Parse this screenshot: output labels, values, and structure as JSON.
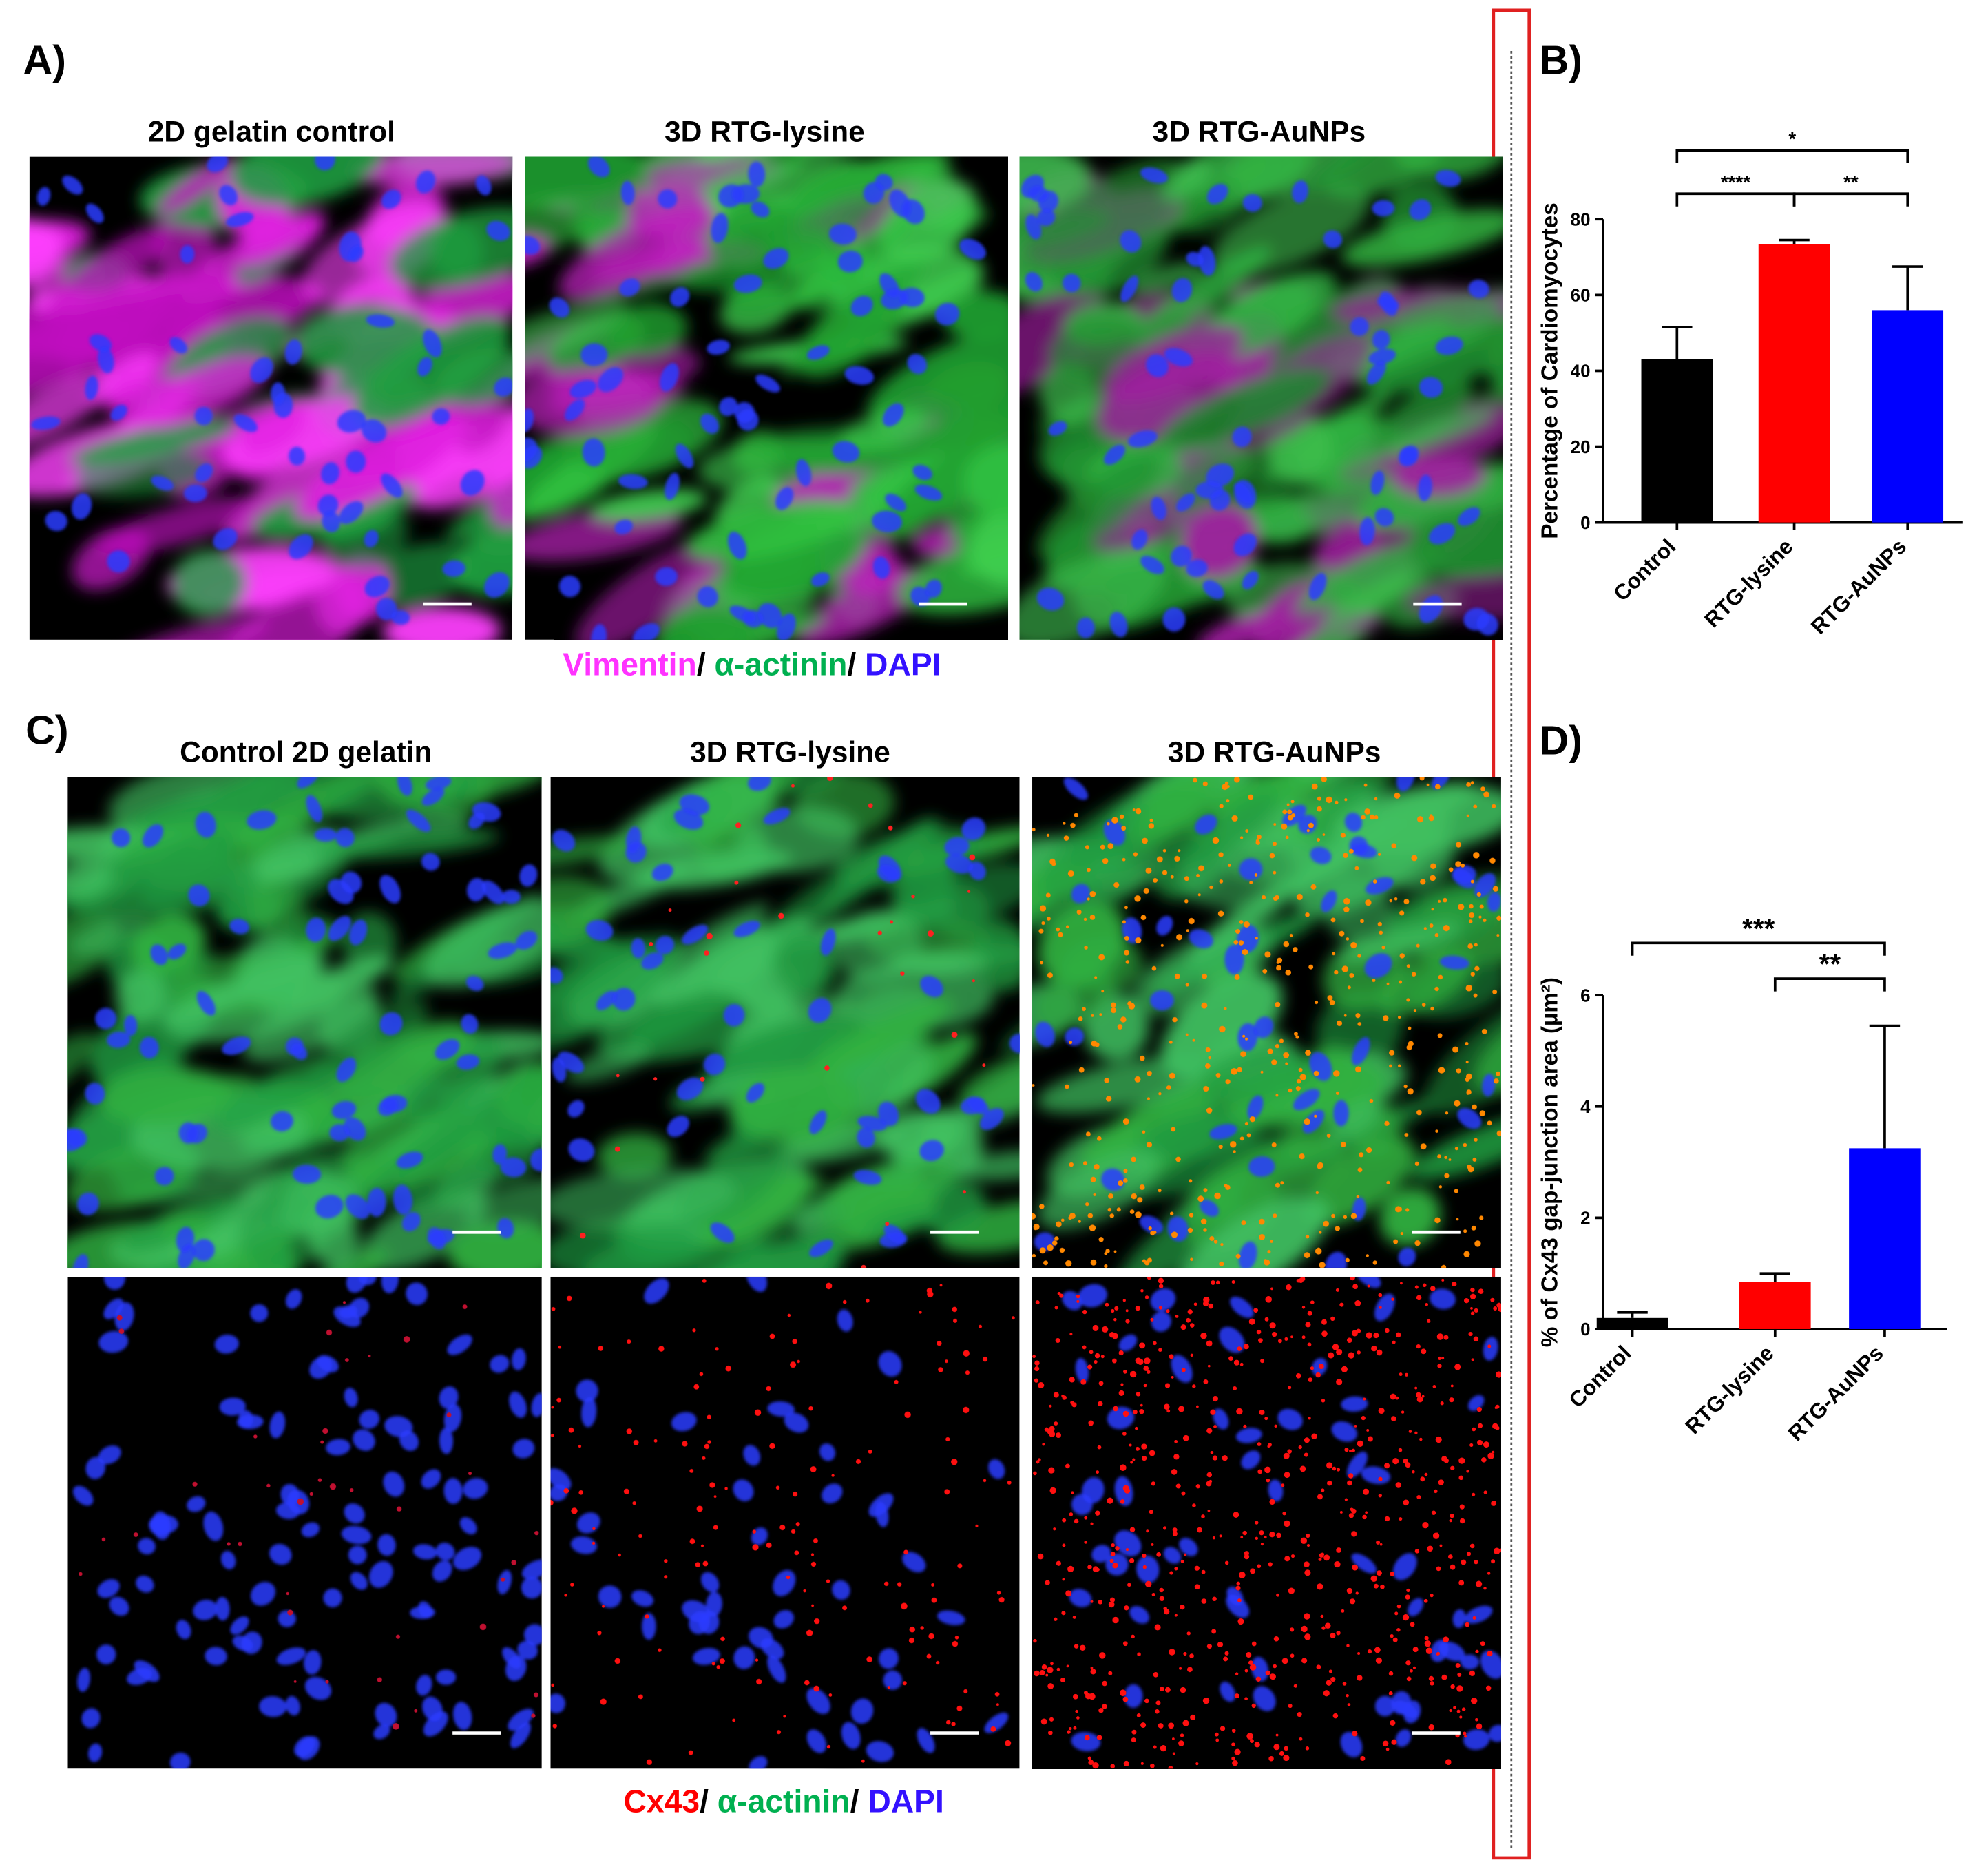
{
  "panel_labels": [
    "A)",
    "B)",
    "C)",
    "D)"
  ],
  "panel_a": {
    "titles": [
      "2D gelatin control",
      "3D RTG-lysine",
      "3D RTG-AuNPs"
    ],
    "legend": {
      "items": [
        "Vimentin",
        "α-actinin",
        "DAPI"
      ],
      "colors": [
        "#ff33ff",
        "#00b050",
        "#3311ff"
      ],
      "separator": "/ "
    }
  },
  "panel_c": {
    "titles": [
      "Control 2D gelatin",
      "3D RTG-lysine",
      "3D RTG-AuNPs"
    ],
    "legend": {
      "items": [
        "Cx43",
        "α-actinin",
        "DAPI"
      ],
      "colors": [
        "#ff0000",
        "#00b050",
        "#3311ff"
      ],
      "separator": "/ "
    }
  },
  "chart_data": [
    {
      "type": "bar",
      "y_label": "Percentage of Cardiomyocytes",
      "categories": [
        "Control",
        "RTG-lysine",
        "RTG-AuNPs"
      ],
      "values": [
        43,
        73.5,
        56
      ],
      "errors": [
        8.5,
        1,
        11.5
      ],
      "colors": [
        "#000000",
        "#ff0000",
        "#0000ff"
      ],
      "ylim": [
        0,
        80
      ],
      "yticks": [
        0,
        20,
        40,
        60,
        80
      ],
      "significance": [
        {
          "from": 0,
          "to": 2,
          "label": "*"
        },
        {
          "from": 0,
          "to": 1,
          "label": "****"
        },
        {
          "from": 1,
          "to": 2,
          "label": "**"
        }
      ]
    },
    {
      "type": "bar",
      "y_label": "% of Cx43 gap-junction area (µm²)",
      "categories": [
        "Control",
        "RTG-lysine",
        "RTG-AuNPs"
      ],
      "values": [
        0.2,
        0.85,
        3.25
      ],
      "errors": [
        0.1,
        0.15,
        2.2
      ],
      "colors": [
        "#000000",
        "#ff0000",
        "#0000ff"
      ],
      "ylim": [
        0,
        6
      ],
      "yticks": [
        0,
        2,
        4,
        6
      ],
      "significance": [
        {
          "from": 0,
          "to": 2,
          "label": "***"
        },
        {
          "from": 1,
          "to": 2,
          "label": "**"
        }
      ]
    }
  ]
}
